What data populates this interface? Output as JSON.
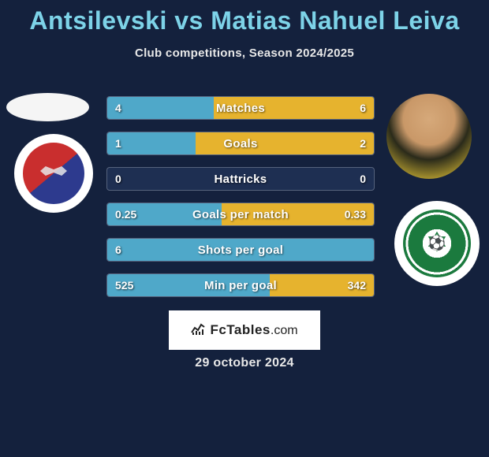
{
  "header": {
    "title": "Antsilevski vs Matias Nahuel Leiva",
    "subtitle": "Club competitions, Season 2024/2025"
  },
  "colors": {
    "bar_left": "#4fa8c9",
    "bar_right": "#e6b32e",
    "background": "#14213d",
    "title_color": "#7dd3e8"
  },
  "stats": [
    {
      "label": "Matches",
      "left_value": "4",
      "right_value": "6",
      "left_pct": 40,
      "right_pct": 60
    },
    {
      "label": "Goals",
      "left_value": "1",
      "right_value": "2",
      "left_pct": 33,
      "right_pct": 67
    },
    {
      "label": "Hattricks",
      "left_value": "0",
      "right_value": "0",
      "left_pct": 0,
      "right_pct": 0
    },
    {
      "label": "Goals per match",
      "left_value": "0.25",
      "right_value": "0.33",
      "left_pct": 43,
      "right_pct": 57
    },
    {
      "label": "Shots per goal",
      "left_value": "6",
      "right_value": "",
      "left_pct": 100,
      "right_pct": 0
    },
    {
      "label": "Min per goal",
      "left_value": "525",
      "right_value": "342",
      "left_pct": 61,
      "right_pct": 39
    }
  ],
  "branding": {
    "label_fc": "FcTables",
    "label_dom": ".com",
    "icon": "chart-icon"
  },
  "date": "29 october 2024",
  "players": {
    "left_name": "Antsilevski",
    "right_name": "Matias Nahuel Leiva"
  }
}
